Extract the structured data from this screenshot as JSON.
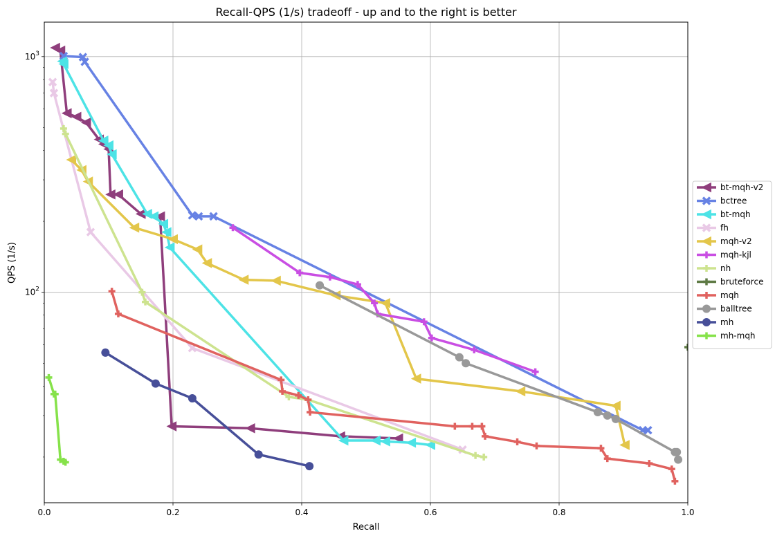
{
  "chart_data": {
    "type": "line",
    "title": "Recall-QPS (1/s) tradeoff - up and to the right is better",
    "xlabel": "Recall",
    "ylabel": "QPS (1/s)",
    "xlim": [
      0,
      1
    ],
    "ylim": [
      12.8,
      1400
    ],
    "yscale": "log",
    "grid": true,
    "legend_position": "right",
    "x_ticks": [
      {
        "value": 0,
        "label": "0.0"
      },
      {
        "value": 0.2,
        "label": "0.2"
      },
      {
        "value": 0.4,
        "label": "0.4"
      },
      {
        "value": 0.6,
        "label": "0.6"
      },
      {
        "value": 0.8,
        "label": "0.8"
      },
      {
        "value": 1.0,
        "label": "1.0"
      }
    ],
    "y_ticks": [
      {
        "value": 100,
        "base": "10",
        "exp": "2"
      },
      {
        "value": 1000,
        "base": "10",
        "exp": "3"
      }
    ],
    "series": [
      {
        "name": "bt-mqh-v2",
        "color": "#8f3e7c",
        "marker": "triangle-left",
        "points": [
          [
            0.017,
            1090
          ],
          [
            0.025,
            1060
          ],
          [
            0.035,
            575
          ],
          [
            0.05,
            555
          ],
          [
            0.065,
            525
          ],
          [
            0.085,
            445
          ],
          [
            0.092,
            425
          ],
          [
            0.1,
            405
          ],
          [
            0.103,
            260
          ],
          [
            0.115,
            260
          ],
          [
            0.15,
            215
          ],
          [
            0.18,
            210
          ],
          [
            0.198,
            27
          ],
          [
            0.32,
            26.5
          ],
          [
            0.46,
            24.5
          ],
          [
            0.55,
            24
          ]
        ]
      },
      {
        "name": "bctree",
        "color": "#6782e4",
        "marker": "x",
        "points": [
          [
            0.03,
            1005
          ],
          [
            0.06,
            995
          ],
          [
            0.063,
            950
          ],
          [
            0.23,
            212
          ],
          [
            0.24,
            210
          ],
          [
            0.263,
            210
          ],
          [
            0.93,
            26
          ],
          [
            0.938,
            26
          ]
        ]
      },
      {
        "name": "bt-mqh",
        "color": "#4de3e6",
        "marker": "triangle-left",
        "points": [
          [
            0.028,
            955
          ],
          [
            0.03,
            930
          ],
          [
            0.092,
            440
          ],
          [
            0.1,
            420
          ],
          [
            0.105,
            385
          ],
          [
            0.16,
            215
          ],
          [
            0.17,
            210
          ],
          [
            0.185,
            195
          ],
          [
            0.19,
            180
          ],
          [
            0.195,
            155
          ],
          [
            0.465,
            23.5
          ],
          [
            0.515,
            23.5
          ],
          [
            0.53,
            23.3
          ],
          [
            0.57,
            23
          ],
          [
            0.6,
            22.5
          ]
        ]
      },
      {
        "name": "fh",
        "color": "#e9c9e6",
        "marker": "x",
        "points": [
          [
            0.013,
            780
          ],
          [
            0.015,
            700
          ],
          [
            0.072,
            180
          ],
          [
            0.23,
            58
          ],
          [
            0.65,
            21.5
          ]
        ]
      },
      {
        "name": "mqh-v2",
        "color": "#e3c64a",
        "marker": "triangle-left",
        "points": [
          [
            0.042,
            365
          ],
          [
            0.058,
            330
          ],
          [
            0.068,
            295
          ],
          [
            0.14,
            188
          ],
          [
            0.2,
            168
          ],
          [
            0.238,
            152
          ],
          [
            0.253,
            133
          ],
          [
            0.31,
            113
          ],
          [
            0.36,
            112
          ],
          [
            0.453,
            97
          ],
          [
            0.53,
            90
          ],
          [
            0.578,
            43
          ],
          [
            0.74,
            38
          ],
          [
            0.888,
            33
          ],
          [
            0.902,
            22.5
          ]
        ]
      },
      {
        "name": "mqh-kjl",
        "color": "#c94ee3",
        "marker": "plus",
        "points": [
          [
            0.293,
            188
          ],
          [
            0.397,
            121
          ],
          [
            0.444,
            116
          ],
          [
            0.487,
            108
          ],
          [
            0.513,
            90
          ],
          [
            0.518,
            81
          ],
          [
            0.59,
            75
          ],
          [
            0.602,
            64
          ],
          [
            0.668,
            57
          ],
          [
            0.763,
            46
          ]
        ]
      },
      {
        "name": "nh",
        "color": "#cde38f",
        "marker": "plus",
        "points": [
          [
            0.03,
            495
          ],
          [
            0.033,
            470
          ],
          [
            0.152,
            100
          ],
          [
            0.157,
            91
          ],
          [
            0.38,
            36
          ],
          [
            0.41,
            35
          ],
          [
            0.67,
            20.3
          ],
          [
            0.683,
            20
          ]
        ]
      },
      {
        "name": "bruteforce",
        "color": "#5e7a44",
        "marker": "plus",
        "points": [
          [
            1.0,
            58.5
          ]
        ]
      },
      {
        "name": "mqh",
        "color": "#e0625f",
        "marker": "plus",
        "points": [
          [
            0.105,
            101
          ],
          [
            0.115,
            81
          ],
          [
            0.368,
            42.5
          ],
          [
            0.37,
            38
          ],
          [
            0.395,
            36.5
          ],
          [
            0.41,
            35
          ],
          [
            0.413,
            31
          ],
          [
            0.638,
            27
          ],
          [
            0.665,
            27
          ],
          [
            0.68,
            27
          ],
          [
            0.685,
            24.5
          ],
          [
            0.735,
            23.2
          ],
          [
            0.765,
            22.3
          ],
          [
            0.865,
            21.8
          ],
          [
            0.875,
            19.7
          ],
          [
            0.94,
            18.8
          ],
          [
            0.975,
            17.8
          ],
          [
            0.98,
            15.8
          ]
        ]
      },
      {
        "name": "balltree",
        "color": "#999999",
        "marker": "circle",
        "points": [
          [
            0.428,
            107
          ],
          [
            0.645,
            53
          ],
          [
            0.655,
            50
          ],
          [
            0.86,
            31
          ],
          [
            0.875,
            30
          ],
          [
            0.888,
            29
          ],
          [
            0.98,
            21
          ],
          [
            0.983,
            21
          ],
          [
            0.985,
            19.5
          ]
        ]
      },
      {
        "name": "mh",
        "color": "#474f99",
        "marker": "circle",
        "points": [
          [
            0.095,
            55.5
          ],
          [
            0.173,
            41
          ],
          [
            0.23,
            35.5
          ],
          [
            0.333,
            20.5
          ],
          [
            0.412,
            18.3
          ]
        ]
      },
      {
        "name": "mh-mqh",
        "color": "#86e24a",
        "marker": "plus",
        "points": [
          [
            0.007,
            43.5
          ],
          [
            0.015,
            37
          ],
          [
            0.017,
            37
          ],
          [
            0.025,
            19.5
          ],
          [
            0.03,
            19.2
          ],
          [
            0.033,
            19
          ]
        ]
      }
    ]
  }
}
